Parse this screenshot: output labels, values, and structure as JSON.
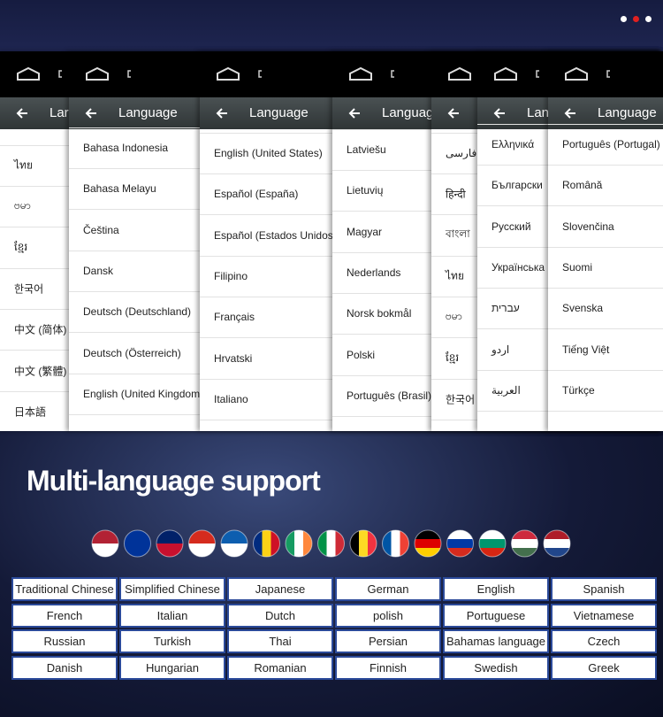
{
  "panels": [
    {
      "title": "Lar",
      "items": [
        "ไทย",
        "ဗမာ",
        "ខ្មែរ",
        "한국어",
        "中文 (简体)",
        "中文 (繁體)",
        "日本語"
      ]
    },
    {
      "title": "Language",
      "items": [
        "Bahasa Indonesia",
        "Bahasa Melayu",
        "Čeština",
        "Dansk",
        "Deutsch (Deutschland)",
        "Deutsch (Österreich)",
        "English (United Kingdom)"
      ]
    },
    {
      "title": "Language",
      "items": [
        "English (United States)",
        "Español (España)",
        "Español (Estados Unidos)",
        "Filipino",
        "Français",
        "Hrvatski",
        "Italiano"
      ]
    },
    {
      "title": "Languag",
      "items": [
        "Latviešu",
        "Lietuvių",
        "Magyar",
        "Nederlands",
        "Norsk bokmål",
        "Polski",
        "Português (Brasil)"
      ]
    },
    {
      "items": [
        "فارسی",
        "हिन्दी",
        "বাংলা",
        "ไทย",
        "ဗမာ",
        "ខ្មែរ",
        "한국어"
      ]
    },
    {
      "title": "Lan",
      "items": [
        "Ελληνικά",
        "Български",
        "Русский",
        "Українська",
        "עברית",
        "اردو",
        "العربية"
      ]
    },
    {
      "title": "Language",
      "items": [
        "Português (Portugal)",
        "Română",
        "Slovenčina",
        "Suomi",
        "Svenska",
        "Tiếng Việt",
        "Türkçe"
      ]
    }
  ],
  "heading": "Multi-language support",
  "table": {
    "rows": [
      [
        "Traditional Chinese",
        "Simplified Chinese",
        "Japanese",
        "German",
        "English",
        "Spanish"
      ],
      [
        "French",
        "Italian",
        "Dutch",
        "polish",
        "Portuguese",
        "Vietnamese"
      ],
      [
        "Russian",
        "Turkish",
        "Thai",
        "Persian",
        "Bahamas language",
        "Czech"
      ],
      [
        "Danish",
        "Hungarian",
        "Romanian",
        "Finnish",
        "Swedish",
        "Greek"
      ]
    ]
  }
}
